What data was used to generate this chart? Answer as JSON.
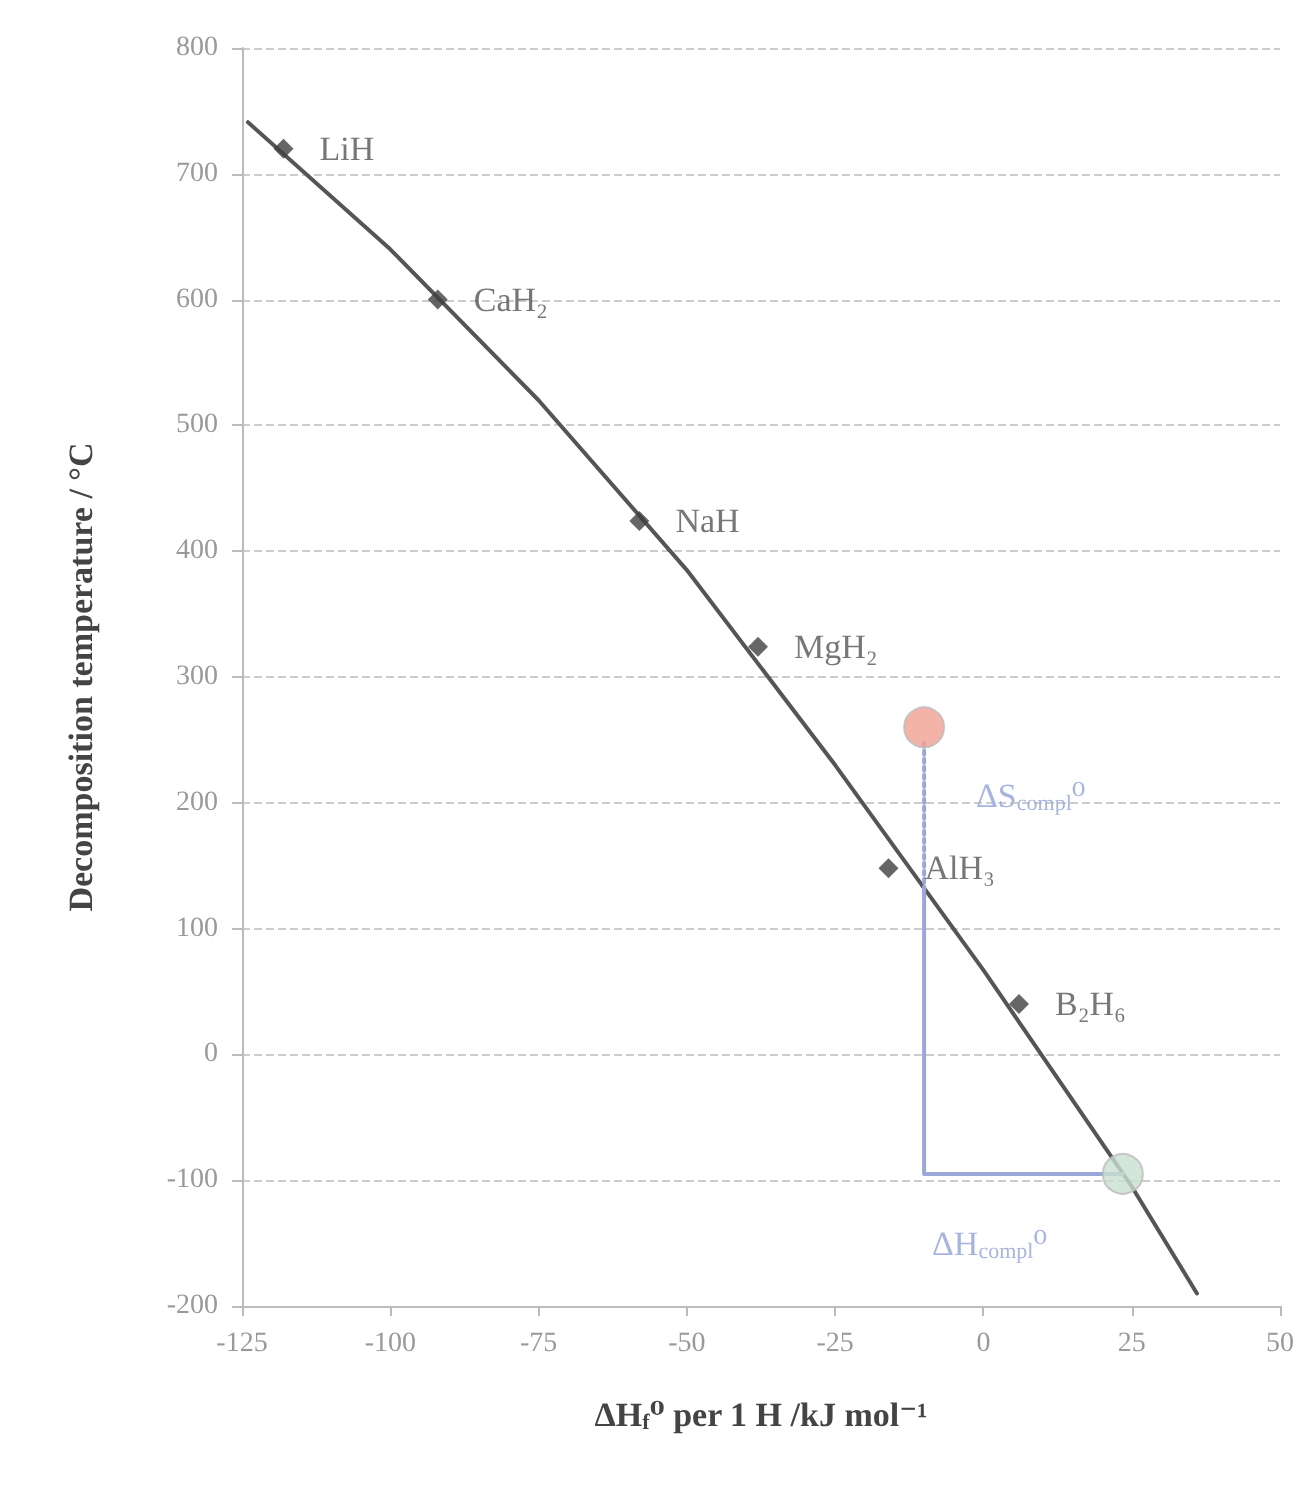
{
  "chart_data": {
    "type": "scatter",
    "xlabel": "ΔH$_{f}$⁰ per 1 H /kJ mol⁻¹",
    "ylabel": "Decomposition temperature / °C",
    "xlim": [
      -125,
      50
    ],
    "xticks": [
      -125,
      -100,
      -75,
      -50,
      -25,
      0,
      25,
      50
    ],
    "ylim": [
      -200,
      800
    ],
    "yticks": [
      -200,
      -100,
      0,
      100,
      200,
      300,
      400,
      500,
      600,
      700,
      800
    ],
    "grid": "y",
    "series": [
      {
        "type": "line",
        "color": "#555555",
        "marker": "none",
        "line_style": "solid",
        "x": [
          -124,
          -100,
          -75,
          -50,
          -25,
          0,
          25,
          36
        ],
        "values": [
          741,
          640,
          520,
          385,
          230,
          67,
          -105,
          -190
        ]
      },
      {
        "type": "line",
        "color": "#9aa8d8",
        "marker": "none",
        "line_style": "solid",
        "x": [
          23.5,
          -10,
          -10
        ],
        "values": [
          -95,
          -95,
          130
        ]
      },
      {
        "type": "line",
        "color": "#9aa8d8",
        "marker": "none",
        "line_style": "dotted",
        "x": [
          -10,
          -10
        ],
        "values": [
          130,
          250
        ]
      },
      {
        "color": "#404040",
        "marker": "diamond",
        "x": [
          -118,
          -92,
          -58,
          -38,
          -16,
          6
        ],
        "values": [
          720,
          600,
          424,
          324,
          148,
          40
        ],
        "value_labels": [
          "LiH",
          "CaH₂",
          "NaH",
          "MgH₂",
          "AlH₃",
          "B₂H₆"
        ]
      },
      {
        "type": "scatter",
        "color": "#f0a090",
        "marker": "circle",
        "x": [
          -10
        ],
        "values": [
          260
        ]
      },
      {
        "type": "scatter",
        "color": "#c8e0d0",
        "marker": "circle",
        "x": [
          23.5
        ],
        "values": [
          -95
        ]
      }
    ],
    "annotations": [
      "ΔS$_{compl}$⁰",
      "ΔH$_{compl}$⁰"
    ]
  }
}
